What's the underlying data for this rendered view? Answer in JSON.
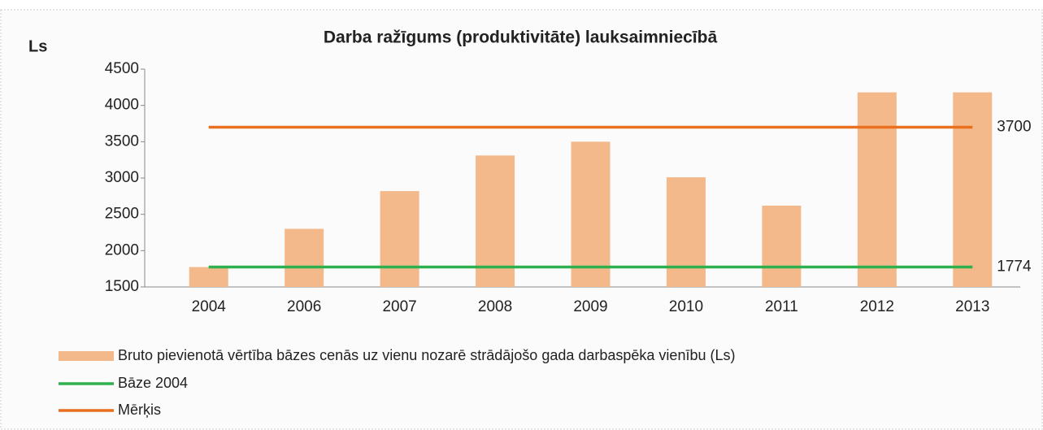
{
  "chart_data": {
    "type": "bar",
    "title": "Darba ražīgums (produktivitāte) lauksaimniecībā",
    "y_axis_label": "Ls",
    "categories": [
      "2004",
      "2006",
      "2007",
      "2008",
      "2009",
      "2010",
      "2011",
      "2012",
      "2013"
    ],
    "series": [
      {
        "name": "Bruto pievienotā vērtība bāzes cenās uz vienu nozarē strādājošo gada darbaspēka vienību (Ls)",
        "type": "bar",
        "color": "#f4b98a",
        "values": [
          1774,
          2300,
          2820,
          3310,
          3500,
          3010,
          2620,
          4180,
          4180
        ]
      },
      {
        "name": "Bāze 2004",
        "type": "line",
        "color": "#2eb04f",
        "values": [
          1774,
          1774,
          1774,
          1774,
          1774,
          1774,
          1774,
          1774,
          1774
        ]
      },
      {
        "name": "Mērķis",
        "type": "line",
        "color": "#e8701f",
        "values": [
          3700,
          3700,
          3700,
          3700,
          3700,
          3700,
          3700,
          3700,
          3700
        ]
      }
    ],
    "ylim": [
      1500,
      4500
    ],
    "yticks": [
      1500,
      2000,
      2500,
      3000,
      3500,
      4000,
      4500
    ],
    "grid": false
  }
}
